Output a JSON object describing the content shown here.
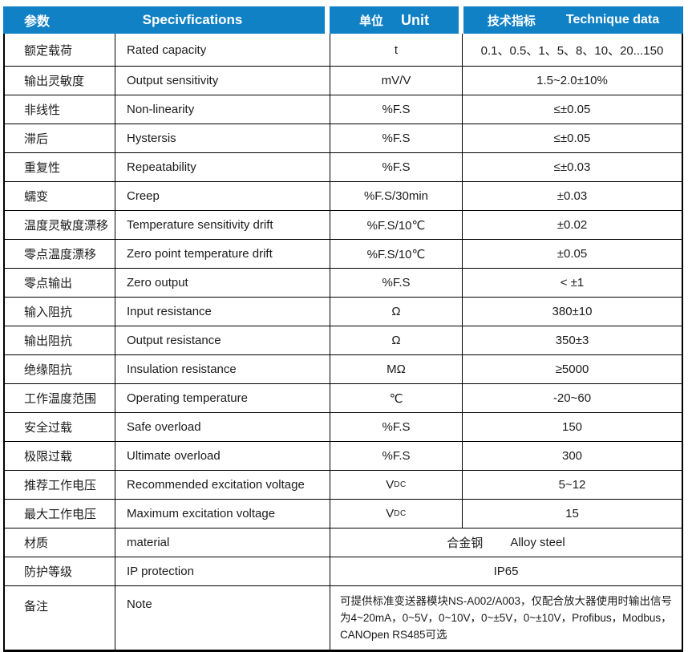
{
  "colors": {
    "header_bg": "#1181C6",
    "header_text": "#FFFFFF",
    "border": "#000000",
    "body_text": "#1B1B1B"
  },
  "header": {
    "param_cn": "参数",
    "spec_en": "Specivfications",
    "unit_cn": "单位",
    "unit_en": "Unit",
    "data_cn": "技术指标",
    "data_en": "Technique data"
  },
  "rows": [
    {
      "param": "额定载荷",
      "spec": "Rated capacity",
      "unit": "t",
      "value": "0.1、0.5、1、5、8、10、20...150"
    },
    {
      "param": "输出灵敏度",
      "spec": "Output sensitivity",
      "unit": "mV/V",
      "value": "1.5~2.0±10%"
    },
    {
      "param": "非线性",
      "spec": "Non-linearity",
      "unit": "%F.S",
      "value": "≤±0.05"
    },
    {
      "param": "滞后",
      "spec": "Hystersis",
      "unit": "%F.S",
      "value": "≤±0.05"
    },
    {
      "param": "重复性",
      "spec": "Repeatability",
      "unit": "%F.S",
      "value": "≤±0.03"
    },
    {
      "param": "蠕变",
      "spec": "Creep",
      "unit": "%F.S/30min",
      "value": "±0.03"
    },
    {
      "param": "温度灵敏度漂移",
      "spec": "Temperature sensitivity drift",
      "unit": "%F.S/10℃",
      "value": "±0.02"
    },
    {
      "param": "零点温度漂移",
      "spec": "Zero point temperature drift",
      "unit": "%F.S/10℃",
      "value": "±0.05"
    },
    {
      "param": "零点输出",
      "spec": "Zero output",
      "unit": "%F.S",
      "value": "< ±1"
    },
    {
      "param": "输入阻抗",
      "spec": "Input resistance",
      "unit": "Ω",
      "value": "380±10"
    },
    {
      "param": "输出阻抗",
      "spec": "Output resistance",
      "unit": "Ω",
      "value": "350±3"
    },
    {
      "param": "绝缘阻抗",
      "spec": "Insulation resistance",
      "unit": "MΩ",
      "value": "≥5000"
    },
    {
      "param": "工作温度范围",
      "spec": "Operating temperature",
      "unit": "℃",
      "value": "-20~60"
    },
    {
      "param": "安全过载",
      "spec": "Safe overload",
      "unit": "%F.S",
      "value": "150"
    },
    {
      "param": "极限过载",
      "spec": "Ultimate overload",
      "unit": "%F.S",
      "value": "300"
    },
    {
      "param": "推荐工作电压",
      "spec": "Recommended excitation voltage",
      "unit": "V",
      "unit_sub": "DC",
      "value": "5~12"
    },
    {
      "param": "最大工作电压",
      "spec": "Maximum excitation voltage",
      "unit": "V",
      "unit_sub": "DC",
      "value": "15"
    }
  ],
  "merged_rows": [
    {
      "param": "材质",
      "spec": "material",
      "value_cn": "合金钢",
      "value_en": "Alloy steel",
      "type": "center"
    },
    {
      "param": "防护等级",
      "spec": "IP protection",
      "value": "IP65",
      "type": "center"
    },
    {
      "param": "备注",
      "spec": "Note",
      "value": "可提供标准变送器模块NS-A002/A003，仅配合放大器使用时输出信号为4~20mA，0~5V，0~10V，0~±5V，0~±10V，Profibus，Modbus，CANOpen  RS485可选",
      "type": "note"
    }
  ]
}
